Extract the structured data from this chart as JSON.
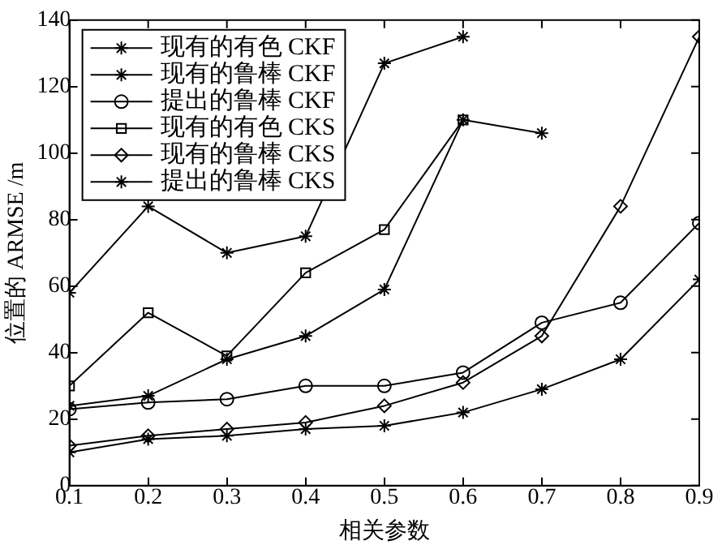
{
  "chart_data": {
    "type": "line",
    "xlabel": "相关参数",
    "ylabel": "位置的 ARMSE /m",
    "x": [
      0.1,
      0.2,
      0.3,
      0.4,
      0.5,
      0.6,
      0.7,
      0.8,
      0.9
    ],
    "xlim": [
      0.1,
      0.9
    ],
    "xticks": [
      0.1,
      0.2,
      0.3,
      0.4,
      0.5,
      0.6,
      0.7,
      0.8,
      0.9
    ],
    "ylim": [
      0,
      140
    ],
    "yticks": [
      0,
      20,
      40,
      60,
      80,
      100,
      120,
      140
    ],
    "grid": false,
    "legend": "top left",
    "line_style": "solid",
    "series": [
      {
        "name": "现有的有色 CKF",
        "color": "#000000",
        "marker": "cross",
        "values": [
          58,
          84,
          70,
          75,
          127,
          135,
          null,
          null,
          null
        ]
      },
      {
        "name": "现有的鲁棒 CKF",
        "color": "#000000",
        "marker": "cross",
        "values": [
          24,
          27,
          38,
          45,
          59,
          110,
          106,
          null,
          null
        ]
      },
      {
        "name": "提出的鲁棒 CKF",
        "color": "#000000",
        "marker": "circle",
        "values": [
          23,
          25,
          26,
          30,
          30,
          34,
          49,
          55,
          79
        ]
      },
      {
        "name": "现有的有色 CKS",
        "color": "#000000",
        "marker": "square",
        "values": [
          30,
          52,
          39,
          64,
          77,
          110,
          null,
          null,
          null
        ]
      },
      {
        "name": "现有的鲁棒 CKS",
        "color": "#000000",
        "marker": "diamond",
        "values": [
          12,
          15,
          17,
          19,
          24,
          31,
          45,
          84,
          135
        ]
      },
      {
        "name": "提出的鲁棒 CKS",
        "color": "#000000",
        "marker": "cross",
        "values": [
          10,
          14,
          15,
          17,
          18,
          22,
          29,
          38,
          62
        ]
      }
    ]
  }
}
